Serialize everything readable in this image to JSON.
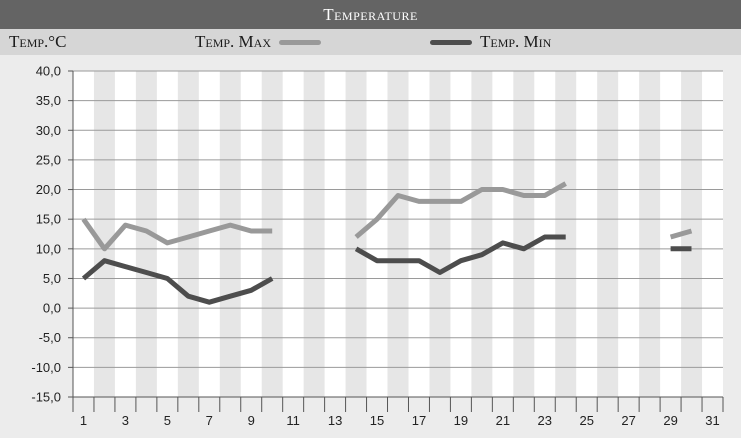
{
  "chart_data": {
    "type": "line",
    "title": "Temperature",
    "ylabel": "Temp.°C",
    "x": [
      1,
      2,
      3,
      4,
      5,
      6,
      7,
      8,
      9,
      10,
      11,
      12,
      13,
      14,
      15,
      16,
      17,
      18,
      19,
      20,
      21,
      22,
      23,
      24,
      25,
      26,
      27,
      28,
      29,
      30,
      31
    ],
    "x_tick_labels": [
      "1",
      "3",
      "5",
      "7",
      "9",
      "11",
      "13",
      "15",
      "17",
      "19",
      "21",
      "23",
      "25",
      "27",
      "29",
      "31"
    ],
    "y_tick_labels": [
      "40,0",
      "35,0",
      "30,0",
      "25,0",
      "20,0",
      "15,0",
      "10,0",
      "5,0",
      "0,0",
      "-5,0",
      "-10,0",
      "-15,0"
    ],
    "ylim": [
      -15,
      40
    ],
    "xlim": [
      1,
      31
    ],
    "grid": true,
    "legend_position": "top",
    "series": [
      {
        "name": "Temp. Max",
        "color": "#999999",
        "values": [
          15,
          10,
          14,
          13,
          11,
          12,
          13,
          14,
          13,
          13,
          null,
          null,
          null,
          12,
          15,
          19,
          18,
          18,
          18,
          20,
          20,
          19,
          19,
          21,
          null,
          null,
          null,
          null,
          12,
          13,
          null
        ]
      },
      {
        "name": "Temp. Min",
        "color": "#4d4d4d",
        "values": [
          5,
          8,
          7,
          6,
          5,
          2,
          1,
          2,
          3,
          5,
          null,
          null,
          null,
          10,
          8,
          8,
          8,
          6,
          8,
          9,
          11,
          10,
          12,
          12,
          null,
          null,
          null,
          null,
          10,
          10,
          null
        ]
      }
    ]
  }
}
